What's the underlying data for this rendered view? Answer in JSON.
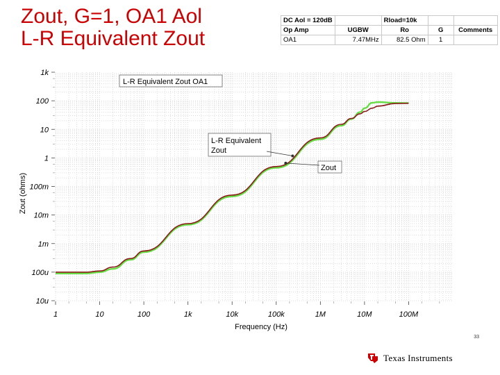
{
  "slide": {
    "title_line1": "Zout, G=1, OA1 Aol",
    "title_line2": "L-R Equivalent Zout",
    "page_number": "33",
    "logo_text": "Texas Instruments",
    "title_color": "#cc0000"
  },
  "param_table": {
    "top_row": [
      "DC Aol = 120dB",
      "",
      "Rload=10k",
      "",
      ""
    ],
    "header_row": [
      "Op Amp",
      "UGBW",
      "Ro",
      "G",
      "Comments"
    ],
    "data_row": [
      "OA1",
      "7.47MHz",
      "82.5 Ohm",
      "1",
      ""
    ]
  },
  "chart_data": {
    "type": "line",
    "xlabel": "Frequency (Hz)",
    "ylabel": "Zout (ohms)",
    "x_scale": "log",
    "y_scale": "log",
    "xlim": [
      1,
      1000000000
    ],
    "ylim": [
      1e-05,
      1000
    ],
    "x_tick_values": [
      1,
      10,
      100,
      1000,
      10000,
      100000,
      1000000,
      10000000,
      100000000
    ],
    "x_tick_labels": [
      "1",
      "10",
      "100",
      "1k",
      "10k",
      "100k",
      "1M",
      "10M",
      "100M"
    ],
    "y_tick_values": [
      1000,
      100,
      10,
      1,
      0.1,
      0.01,
      0.001,
      0.0001,
      1e-05
    ],
    "y_tick_labels": [
      "1k",
      "100",
      "10",
      "1",
      "100m",
      "10m",
      "1m",
      "100u",
      "10u"
    ],
    "grid": true,
    "series": [
      {
        "name": "Zout",
        "color": "#66dd44",
        "x": [
          1,
          3,
          5,
          10,
          20,
          50,
          100,
          1000,
          10000,
          100000,
          1000000,
          3000000,
          5000000,
          8000000,
          10000000,
          15000000,
          20000000,
          50000000,
          100000000
        ],
        "y": [
          9e-05,
          9e-05,
          9.05e-05,
          0.0001,
          0.00013,
          0.00027,
          0.0005,
          0.0046,
          0.045,
          0.45,
          4.5,
          13.5,
          23,
          40,
          55,
          85,
          90,
          84,
          83
        ]
      },
      {
        "name": "L-R Equivalent Zout",
        "color": "#8b1a1a",
        "x": [
          1,
          3,
          5,
          10,
          20,
          50,
          100,
          1000,
          10000,
          100000,
          1000000,
          3000000,
          5000000,
          8000000,
          10000000,
          15000000,
          20000000,
          50000000,
          100000000
        ],
        "y": [
          0.0001,
          0.0001,
          0.0001,
          0.00011,
          0.00015,
          0.0003,
          0.00055,
          0.005,
          0.05,
          0.5,
          5,
          15,
          24,
          35,
          42,
          55,
          65,
          80,
          82
        ]
      }
    ],
    "annotations": [
      {
        "text": "L-R Equivalent Zout OA1",
        "boxed": true
      },
      {
        "lines": [
          "L-R Equivalent",
          "Zout"
        ],
        "boxed": true,
        "points_to_series": "L-R Equivalent Zout",
        "at_x": 1000000
      },
      {
        "text": "Zout",
        "boxed": true,
        "points_to_series": "Zout",
        "at_x": 1000000
      }
    ]
  }
}
